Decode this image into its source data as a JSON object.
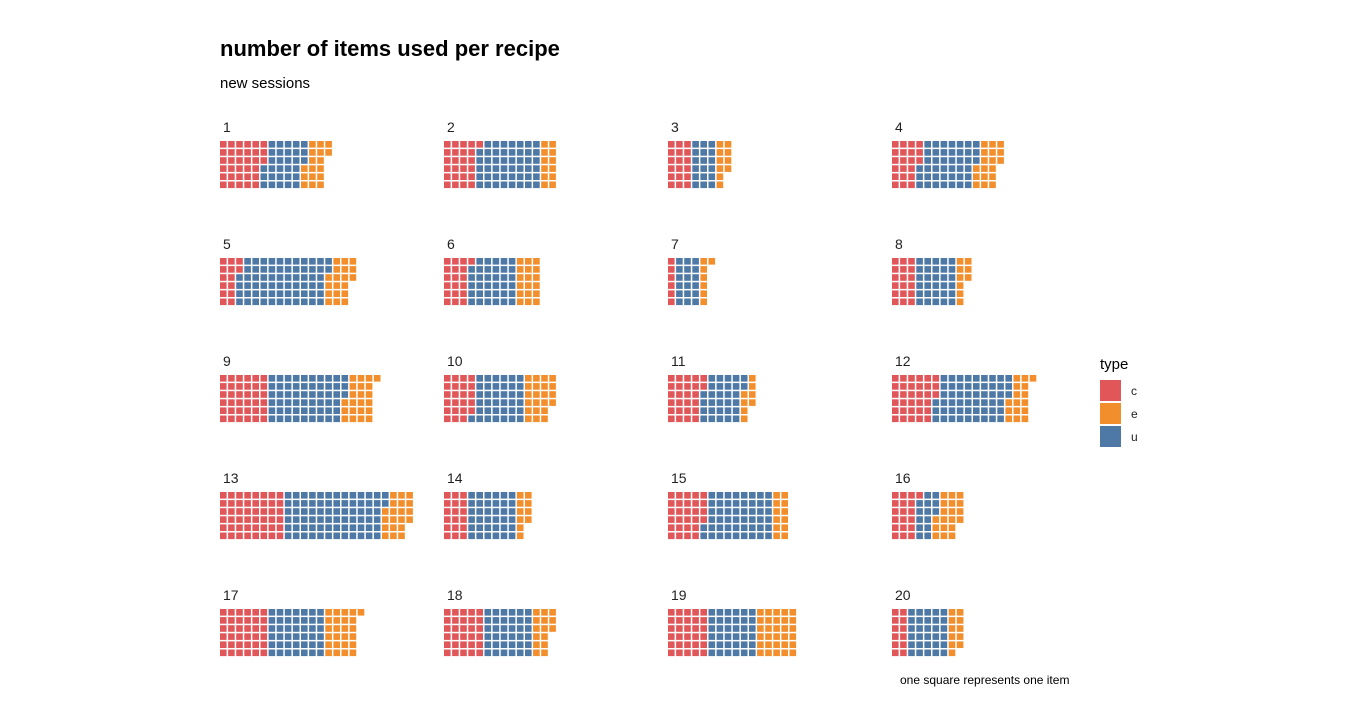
{
  "title": "number of items used per recipe",
  "subtitle": "new sessions",
  "caption": "one square represents one item",
  "legend": {
    "title": "type",
    "items": [
      {
        "label": "c",
        "color": "#E15759"
      },
      {
        "label": "e",
        "color": "#F28E2B"
      },
      {
        "label": "u",
        "color": "#4E79A7"
      }
    ]
  },
  "chart_data": {
    "type": "waffle",
    "title": "number of items used per recipe",
    "subtitle": "new sessions",
    "rows_per_column": 6,
    "categories": [
      "c",
      "e",
      "u"
    ],
    "stack_order": [
      "c",
      "u",
      "e"
    ],
    "colors": {
      "c": "#E15759",
      "e": "#F28E2B",
      "u": "#4E79A7"
    },
    "panels": [
      {
        "label": "1",
        "c": 33,
        "u": 30,
        "e": 17
      },
      {
        "label": "2",
        "c": 25,
        "u": 47,
        "e": 12
      },
      {
        "label": "3",
        "c": 18,
        "u": 18,
        "e": 10
      },
      {
        "label": "4",
        "c": 21,
        "u": 42,
        "e": 18
      },
      {
        "label": "5",
        "c": 14,
        "u": 66,
        "e": 19
      },
      {
        "label": "6",
        "c": 19,
        "u": 35,
        "e": 18
      },
      {
        "label": "7",
        "c": 6,
        "u": 18,
        "e": 7
      },
      {
        "label": "8",
        "c": 18,
        "u": 30,
        "e": 9
      },
      {
        "label": "9",
        "c": 36,
        "u": 57,
        "e": 22
      },
      {
        "label": "10",
        "c": 23,
        "u": 37,
        "e": 22
      },
      {
        "label": "11",
        "c": 26,
        "u": 30,
        "e": 8
      },
      {
        "label": "12",
        "c": 33,
        "u": 54,
        "e": 16
      },
      {
        "label": "13",
        "c": 48,
        "u": 74,
        "e": 20
      },
      {
        "label": "14",
        "c": 18,
        "u": 36,
        "e": 10
      },
      {
        "label": "15",
        "c": 28,
        "u": 50,
        "e": 12
      },
      {
        "label": "16",
        "c": 19,
        "u": 14,
        "e": 19
      },
      {
        "label": "17",
        "c": 36,
        "u": 42,
        "e": 25
      },
      {
        "label": "18",
        "c": 30,
        "u": 36,
        "e": 15
      },
      {
        "label": "19",
        "c": 30,
        "u": 36,
        "e": 30
      },
      {
        "label": "20",
        "c": 12,
        "u": 30,
        "e": 11
      }
    ]
  }
}
